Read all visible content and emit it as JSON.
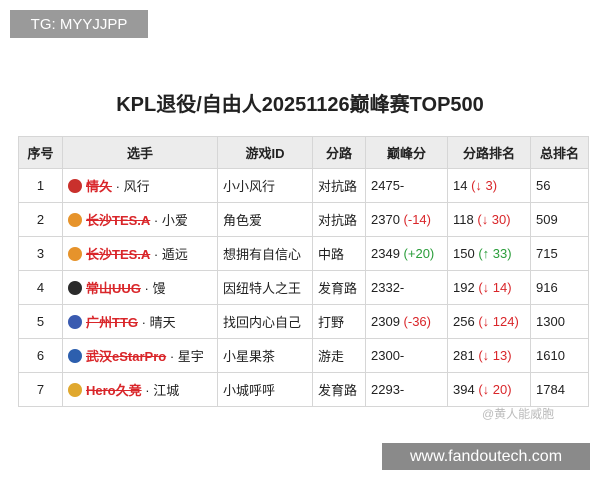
{
  "watermark_top": "TG: MYYJJPP",
  "watermark_bottom": "www.fandoutech.com",
  "watermark_weibo": "@黄人能威胞",
  "title": "KPL退役/自由人20251126巅峰赛TOP500",
  "table": {
    "headers": [
      "序号",
      "选手",
      "游戏ID",
      "分路",
      "巅峰分",
      "分路排名",
      "总排名"
    ],
    "rows": [
      {
        "index": "1",
        "team": "情久",
        "player": "· 风行",
        "game_id": "小小风行",
        "role": "对抗路",
        "score": "2475-",
        "score_change": null,
        "role_rank": "14",
        "rank_change": "(↓ 3)",
        "total_rank": "56"
      },
      {
        "index": "2",
        "team": "长沙TES.A",
        "player": "· 小爱",
        "game_id": "角色爱",
        "role": "对抗路",
        "score": "2370",
        "score_change": "(-14)",
        "role_rank": "118",
        "rank_change": "(↓ 30)",
        "total_rank": "509"
      },
      {
        "index": "3",
        "team": "长沙TES.A",
        "player": "· 遁远",
        "game_id": "想拥有自信心",
        "role": "中路",
        "score": "2349",
        "score_change": "(+20)",
        "role_rank": "150",
        "rank_change": "(↑ 33)",
        "total_rank": "715"
      },
      {
        "index": "4",
        "team": "常山UUG",
        "player": "· 馒",
        "game_id": "因纽特人之王",
        "role": "发育路",
        "score": "2332-",
        "score_change": null,
        "role_rank": "192",
        "rank_change": "(↓ 14)",
        "total_rank": "916"
      },
      {
        "index": "5",
        "team": "广州TTG",
        "player": "· 晴天",
        "game_id": "找回内心自己",
        "role": "打野",
        "score": "2309",
        "score_change": "(-36)",
        "role_rank": "256",
        "rank_change": "(↓ 124)",
        "total_rank": "1300"
      },
      {
        "index": "6",
        "team": "武汉eStarPro",
        "player": "· 星宇",
        "game_id": "小星果茶",
        "role": "游走",
        "score": "2300-",
        "score_change": null,
        "role_rank": "281",
        "rank_change": "(↓ 13)",
        "total_rank": "1610"
      },
      {
        "index": "7",
        "team": "Hero久竞",
        "player": "· 江城",
        "game_id": "小城呼呼",
        "role": "发育路",
        "score": "2293-",
        "score_change": null,
        "role_rank": "394",
        "rank_change": "(↓ 20)",
        "total_rank": "1784"
      }
    ]
  }
}
